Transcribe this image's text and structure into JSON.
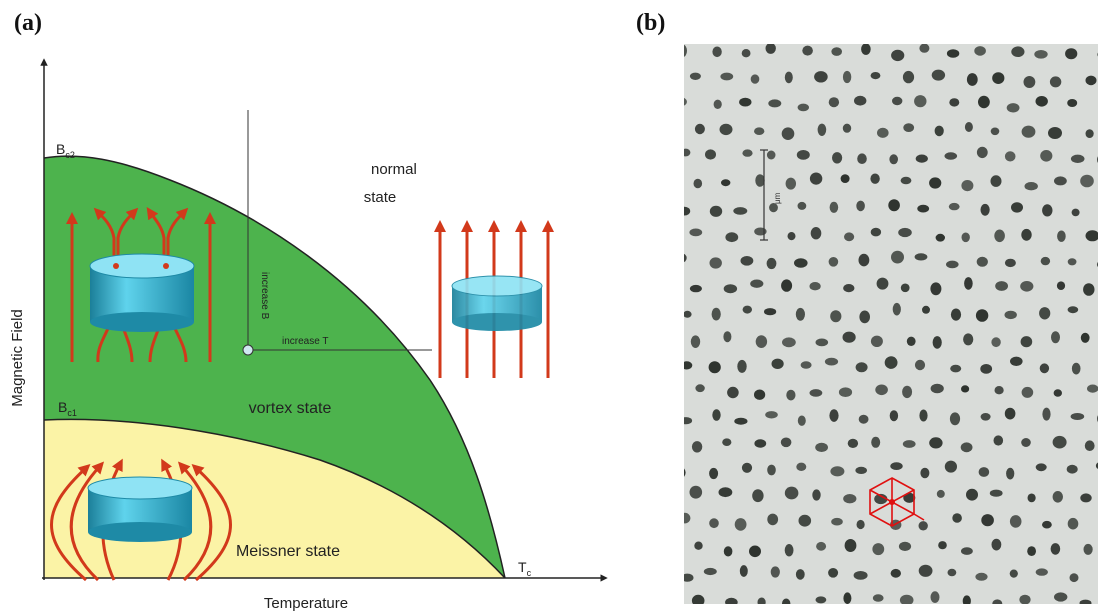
{
  "panels": {
    "a": "(a)",
    "b": "(b)"
  },
  "diagram": {
    "y_axis_label": "Magnetic Field",
    "x_axis_label": "Temperature",
    "bc2": {
      "main": "B",
      "sub": "c2"
    },
    "bc1": {
      "main": "B",
      "sub": "c1"
    },
    "tc": {
      "main": "T",
      "sub": "c"
    },
    "normal_state": [
      "normal",
      "state"
    ],
    "vortex_state": "vortex state",
    "meissner_state": "Meissner state",
    "increase_b": "increase B",
    "increase_t": "increase T",
    "colors": {
      "normal_region": "#ffffff",
      "vortex_region": "#4db34d",
      "meissner_region": "#fbf3a6",
      "field_lines": "#d2391b",
      "cylinder": "#27a6c4"
    }
  },
  "micrograph": {
    "scale_label": "μm",
    "hex_overlay_color": "#e01010"
  }
}
